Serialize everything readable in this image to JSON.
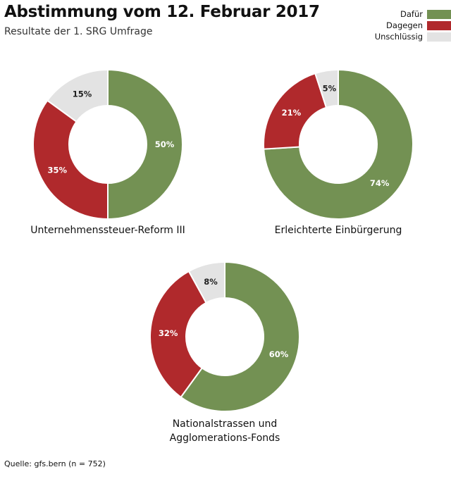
{
  "header": {
    "title": "Abstimmung vom 12. Februar 2017",
    "subtitle": "Resultate der 1. SRG Umfrage"
  },
  "legend": [
    {
      "label": "Dafür",
      "color": "#739153"
    },
    {
      "label": "Dagegen",
      "color": "#b0292c"
    },
    {
      "label": "Unschlüssig",
      "color": "#e3e3e3"
    }
  ],
  "source": "Quelle: gfs.bern (n = 752)",
  "chart_data": [
    {
      "type": "pie",
      "variant": "donut",
      "title": "Unternehmenssteuer-Reform III",
      "categories": [
        "Dafür",
        "Dagegen",
        "Unschlüssig"
      ],
      "values": [
        50,
        35,
        15
      ],
      "labels": [
        "50%",
        "35%",
        "15%"
      ],
      "unit": "%"
    },
    {
      "type": "pie",
      "variant": "donut",
      "title": "Erleichterte Einbürgerung",
      "categories": [
        "Dafür",
        "Dagegen",
        "Unschlüssig"
      ],
      "values": [
        74,
        21,
        5
      ],
      "labels": [
        "74%",
        "21%",
        "5%"
      ],
      "unit": "%"
    },
    {
      "type": "pie",
      "variant": "donut",
      "title": "Nationalstrassen und Agglomerations-Fonds",
      "title_lines": [
        "Nationalstrassen und",
        "Agglomerations-Fonds"
      ],
      "categories": [
        "Dafür",
        "Dagegen",
        "Unschlüssig"
      ],
      "values": [
        60,
        32,
        8
      ],
      "labels": [
        "60%",
        "32%",
        "8%"
      ],
      "unit": "%"
    }
  ]
}
